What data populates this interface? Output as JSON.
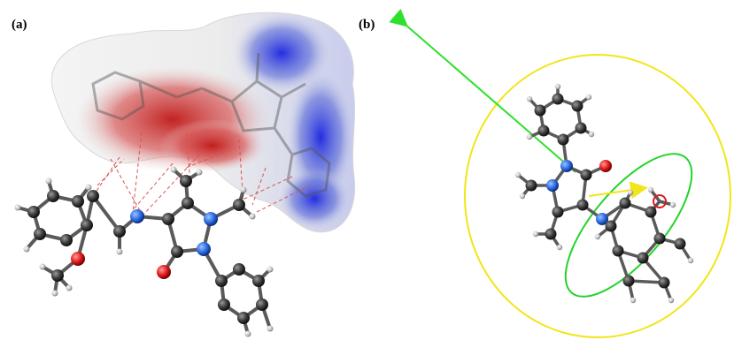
{
  "panels": [
    {
      "id": "a",
      "label": "(a)"
    },
    {
      "id": "b",
      "label": "(b)"
    }
  ],
  "colors": {
    "surface_red": "#c93030",
    "surface_white": "#f2f2f2",
    "surface_blue": "#2b3cd6",
    "ellipse_yellow": "#f2e51a",
    "ellipse_green": "#22d42a",
    "arrow_green": "#2ee02e",
    "arrow_yellow": "#f2e51a",
    "atom_carbon": "#3a3a3a",
    "atom_hydrogen": "#d8d8d8",
    "atom_nitrogen": "#2d6be0",
    "atom_oxygen": "#e01a1a",
    "contact_line": "#d9534f"
  }
}
